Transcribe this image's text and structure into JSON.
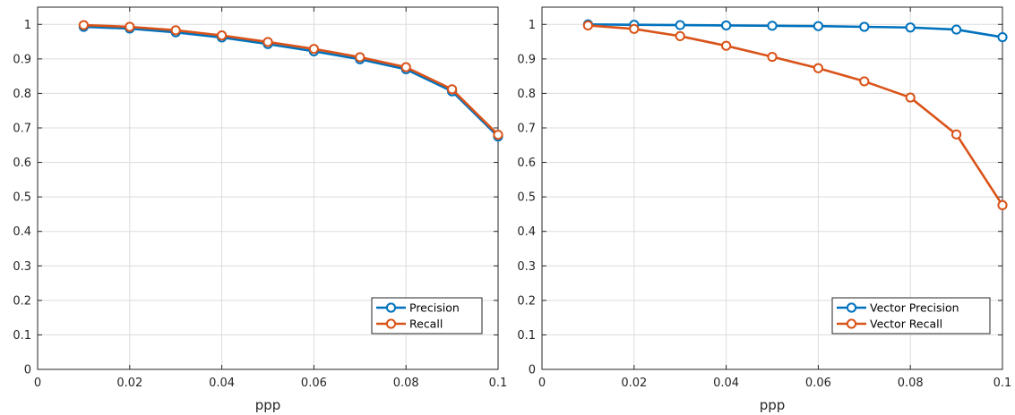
{
  "chart_data": [
    {
      "type": "line",
      "title": "",
      "xlabel": "ppp",
      "ylabel": "",
      "xlim": [
        0,
        0.1
      ],
      "ylim": [
        0,
        1.05
      ],
      "xticks": [
        0,
        0.02,
        0.04,
        0.06,
        0.08,
        0.1
      ],
      "xtick_labels": [
        "0",
        "0.02",
        "0.04",
        "0.06",
        "0.08",
        "0.1"
      ],
      "yticks": [
        0,
        0.1,
        0.2,
        0.3,
        0.4,
        0.5,
        0.6,
        0.7,
        0.8,
        0.9,
        1
      ],
      "ytick_labels": [
        "0",
        "0.1",
        "0.2",
        "0.3",
        "0.4",
        "0.5",
        "0.6",
        "0.7",
        "0.8",
        "0.9",
        "1"
      ],
      "grid": true,
      "legend_position": "bottom-right",
      "x": [
        0.01,
        0.02,
        0.03,
        0.04,
        0.05,
        0.06,
        0.07,
        0.08,
        0.09,
        0.1
      ],
      "series": [
        {
          "name": "Precision",
          "color": "#0072BD",
          "values": [
            0.993,
            0.988,
            0.977,
            0.962,
            0.943,
            0.922,
            0.899,
            0.87,
            0.806,
            0.675
          ]
        },
        {
          "name": "Recall",
          "color": "#D95319",
          "values": [
            0.998,
            0.993,
            0.983,
            0.968,
            0.949,
            0.929,
            0.905,
            0.876,
            0.812,
            0.68
          ]
        }
      ]
    },
    {
      "type": "line",
      "title": "",
      "xlabel": "ppp",
      "ylabel": "",
      "xlim": [
        0,
        0.1
      ],
      "ylim": [
        0,
        1.05
      ],
      "xticks": [
        0,
        0.02,
        0.04,
        0.06,
        0.08,
        0.1
      ],
      "xtick_labels": [
        "0",
        "0.02",
        "0.04",
        "0.06",
        "0.08",
        "0.1"
      ],
      "yticks": [
        0,
        0.1,
        0.2,
        0.3,
        0.4,
        0.5,
        0.6,
        0.7,
        0.8,
        0.9,
        1
      ],
      "ytick_labels": [
        "0",
        "0.1",
        "0.2",
        "0.3",
        "0.4",
        "0.5",
        "0.6",
        "0.7",
        "0.8",
        "0.9",
        "1"
      ],
      "grid": true,
      "legend_position": "bottom-right",
      "x": [
        0.01,
        0.02,
        0.03,
        0.04,
        0.05,
        0.06,
        0.07,
        0.08,
        0.09,
        0.1
      ],
      "series": [
        {
          "name": "Vector Precision",
          "color": "#0072BD",
          "values": [
            1.0,
            0.999,
            0.998,
            0.997,
            0.996,
            0.995,
            0.993,
            0.991,
            0.985,
            0.963
          ]
        },
        {
          "name": "Vector Recall",
          "color": "#D95319",
          "values": [
            0.997,
            0.987,
            0.966,
            0.938,
            0.906,
            0.873,
            0.835,
            0.788,
            0.681,
            0.476
          ]
        }
      ]
    }
  ]
}
